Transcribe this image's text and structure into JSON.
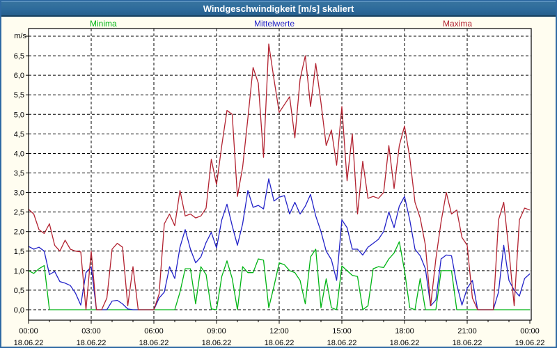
{
  "title": "Windgeschwindigkeit [m/s] skaliert",
  "axis_unit": "m/s",
  "legend": {
    "minima": "Minima",
    "mittelwerte": "Mittelwerte",
    "maxima": "Maxima"
  },
  "colors": {
    "minima": "#00b414",
    "mittelwerte": "#2222c8",
    "maxima": "#b22230",
    "titlebar": "#2d6a9b",
    "title_text": "#ffffff",
    "window_border": "#2f6aa3",
    "outer_background": "#fffdf0",
    "plot_background": "#ffffff",
    "grid": "#000000",
    "axis_text": "#000000"
  },
  "chart_data": {
    "type": "line",
    "title": "Windgeschwindigkeit [m/s] skaliert",
    "ylabel": "m/s",
    "ylim": [
      0,
      7.2
    ],
    "grid": "dashed, every 0.5 m/s horizontal, every 3 h vertical",
    "legend_position": "top",
    "x_start_hours": 0,
    "x_step_hours": 0.25,
    "x_ticks": [
      {
        "time": "00:00",
        "date": "18.06.22"
      },
      {
        "time": "03:00",
        "date": "18.06.22"
      },
      {
        "time": "06:00",
        "date": "18.06.22"
      },
      {
        "time": "09:00",
        "date": "18.06.22"
      },
      {
        "time": "12:00",
        "date": "18.06.22"
      },
      {
        "time": "15:00",
        "date": "18.06.22"
      },
      {
        "time": "18:00",
        "date": "18.06.22"
      },
      {
        "time": "21:00",
        "date": "18.06.22"
      },
      {
        "time": "00:00",
        "date": "19.06.22"
      }
    ],
    "y_tick_labels": [
      "0,0",
      "0,5",
      "1,0",
      "1,5",
      "2,0",
      "2,5",
      "3,0",
      "3,5",
      "4,0",
      "4,5",
      "5,0",
      "5,5",
      "6,0",
      "6,5"
    ],
    "series": [
      {
        "name": "Minima",
        "color": "#00b414",
        "values": [
          1.0,
          0.93,
          1.05,
          1.13,
          0,
          0,
          0,
          0,
          0,
          0,
          0,
          0,
          0,
          0,
          0,
          0,
          0,
          0,
          0,
          0,
          0,
          0,
          0,
          0,
          0,
          0,
          0,
          0,
          0,
          0.45,
          1.05,
          1.05,
          0.15,
          1.1,
          0.9,
          0.02,
          0,
          0.85,
          1.25,
          0.8,
          0,
          1.1,
          0.95,
          0.95,
          1.3,
          1.27,
          0.05,
          0.6,
          1.2,
          1.15,
          1.0,
          0.95,
          0.75,
          0.15,
          1.35,
          1.55,
          0.05,
          0.79,
          0.05,
          0,
          1.12,
          1.0,
          0.88,
          0.85,
          0,
          0.1,
          1.05,
          1.1,
          1.08,
          1.3,
          1.45,
          1.74,
          1.0,
          0.05,
          0,
          0.8,
          0,
          0,
          0,
          1.0,
          1.0,
          1.0,
          0,
          0,
          0,
          0,
          0,
          0,
          0,
          0,
          0,
          0,
          0,
          0,
          0,
          0,
          0
        ]
      },
      {
        "name": "Mittelwerte",
        "color": "#2222c8",
        "values": [
          1.62,
          1.55,
          1.6,
          1.5,
          0.9,
          0.98,
          0.72,
          0.68,
          0.62,
          0.42,
          0.12,
          0.95,
          1.1,
          0,
          0,
          0,
          0.22,
          0.24,
          0.15,
          0.02,
          0,
          0,
          0,
          0,
          0,
          0.3,
          0.45,
          1.1,
          0.8,
          1.6,
          2.05,
          1.55,
          1.2,
          1.35,
          1.72,
          1.98,
          1.58,
          2.3,
          2.7,
          2.15,
          1.65,
          2.2,
          3.05,
          2.62,
          2.67,
          2.58,
          3.35,
          2.78,
          2.88,
          2.92,
          2.45,
          2.75,
          2.45,
          2.65,
          2.95,
          2.4,
          2.0,
          1.5,
          1.28,
          0.75,
          2.3,
          2.1,
          1.55,
          1.55,
          1.4,
          1.6,
          1.7,
          1.8,
          2.0,
          2.5,
          2.1,
          2.65,
          2.9,
          2.3,
          1.55,
          1.38,
          1.05,
          0.1,
          0.25,
          1.3,
          1.4,
          1.38,
          0.65,
          0.12,
          0.55,
          0.75,
          0,
          0,
          0,
          0,
          0.45,
          1.65,
          0.75,
          0.5,
          0.35,
          0.8,
          0.92
        ]
      },
      {
        "name": "Maxima",
        "color": "#b22230",
        "values": [
          2.57,
          2.45,
          2.05,
          1.95,
          2.2,
          1.65,
          1.5,
          1.78,
          1.55,
          1.5,
          1.48,
          0,
          1.5,
          0,
          0,
          0.3,
          1.55,
          1.7,
          1.6,
          0.1,
          1.1,
          0,
          0,
          0,
          0,
          0.4,
          2.2,
          2.45,
          2.15,
          3.05,
          2.4,
          2.45,
          2.35,
          2.4,
          2.6,
          3.85,
          3.2,
          4.2,
          5.1,
          5.0,
          2.9,
          3.65,
          4.9,
          6.2,
          5.8,
          3.9,
          6.8,
          5.9,
          5.05,
          5.25,
          5.45,
          4.4,
          5.9,
          6.5,
          5.2,
          6.3,
          5.3,
          4.2,
          4.6,
          3.7,
          5.2,
          3.3,
          4.5,
          2.45,
          3.8,
          2.85,
          2.9,
          2.85,
          3.0,
          4.2,
          3.1,
          4.2,
          4.7,
          3.9,
          2.75,
          2.35,
          1.65,
          0.1,
          1.3,
          2.25,
          3.0,
          2.45,
          2.55,
          1.85,
          1.65,
          0.3,
          0,
          0,
          0,
          0,
          2.3,
          2.75,
          1.5,
          0.1,
          2.3,
          2.6,
          2.55
        ]
      }
    ]
  }
}
